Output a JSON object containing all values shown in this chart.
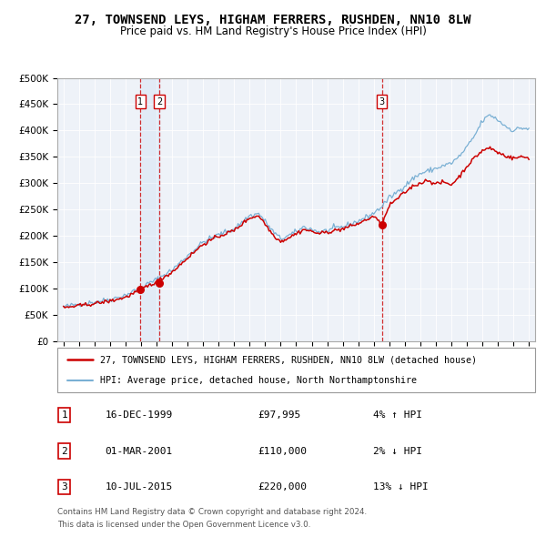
{
  "title": "27, TOWNSEND LEYS, HIGHAM FERRERS, RUSHDEN, NN10 8LW",
  "subtitle": "Price paid vs. HM Land Registry's House Price Index (HPI)",
  "title_fontsize": 10,
  "subtitle_fontsize": 8.5,
  "legend_line1": "27, TOWNSEND LEYS, HIGHAM FERRERS, RUSHDEN, NN10 8LW (detached house)",
  "legend_line2": "HPI: Average price, detached house, North Northamptonshire",
  "sale_color": "#cc0000",
  "hpi_color": "#7ab0d4",
  "plot_bg_color": "#eef2f8",
  "grid_color": "#ffffff",
  "transactions": [
    {
      "label": "1",
      "date_num": 1999.96,
      "price": 97995,
      "pct": "4%",
      "dir": "↑",
      "date_str": "16-DEC-1999"
    },
    {
      "label": "2",
      "date_num": 2001.17,
      "price": 110000,
      "pct": "2%",
      "dir": "↓",
      "date_str": "01-MAR-2001"
    },
    {
      "label": "3",
      "date_num": 2015.52,
      "price": 220000,
      "pct": "13%",
      "dir": "↓",
      "date_str": "10-JUL-2015"
    }
  ],
  "footer_line1": "Contains HM Land Registry data © Crown copyright and database right 2024.",
  "footer_line2": "This data is licensed under the Open Government Licence v3.0.",
  "ylim": [
    0,
    500000
  ],
  "yticks": [
    0,
    50000,
    100000,
    150000,
    200000,
    250000,
    300000,
    350000,
    400000,
    450000,
    500000
  ],
  "xlim_start": 1994.6,
  "xlim_end": 2025.4,
  "shade_start": 1999.96,
  "shade_end": 2001.17,
  "hpi_anchors": [
    [
      1995.0,
      65000
    ],
    [
      1996.0,
      70000
    ],
    [
      1997.0,
      74000
    ],
    [
      1998.0,
      79000
    ],
    [
      1999.0,
      87000
    ],
    [
      2000.0,
      102000
    ],
    [
      2001.0,
      117000
    ],
    [
      2002.0,
      135000
    ],
    [
      2003.0,
      162000
    ],
    [
      2004.0,
      188000
    ],
    [
      2005.0,
      202000
    ],
    [
      2006.0,
      213000
    ],
    [
      2007.0,
      238000
    ],
    [
      2007.6,
      242000
    ],
    [
      2008.5,
      208000
    ],
    [
      2009.0,
      194000
    ],
    [
      2009.5,
      200000
    ],
    [
      2010.0,
      207000
    ],
    [
      2010.5,
      217000
    ],
    [
      2011.0,
      212000
    ],
    [
      2011.5,
      207000
    ],
    [
      2012.0,
      210000
    ],
    [
      2012.5,
      214000
    ],
    [
      2013.0,
      217000
    ],
    [
      2013.5,
      222000
    ],
    [
      2014.0,
      228000
    ],
    [
      2014.5,
      235000
    ],
    [
      2015.0,
      243000
    ],
    [
      2015.5,
      255000
    ],
    [
      2016.0,
      272000
    ],
    [
      2016.5,
      283000
    ],
    [
      2017.0,
      295000
    ],
    [
      2017.5,
      308000
    ],
    [
      2018.0,
      318000
    ],
    [
      2018.5,
      323000
    ],
    [
      2019.0,
      328000
    ],
    [
      2019.5,
      333000
    ],
    [
      2020.0,
      338000
    ],
    [
      2020.5,
      350000
    ],
    [
      2021.0,
      368000
    ],
    [
      2021.5,
      390000
    ],
    [
      2022.0,
      418000
    ],
    [
      2022.5,
      430000
    ],
    [
      2023.0,
      420000
    ],
    [
      2023.5,
      408000
    ],
    [
      2024.0,
      400000
    ],
    [
      2024.5,
      405000
    ],
    [
      2025.0,
      403000
    ]
  ],
  "prop_anchors": [
    [
      1995.0,
      63000
    ],
    [
      1996.0,
      67000
    ],
    [
      1997.0,
      71000
    ],
    [
      1998.0,
      76000
    ],
    [
      1999.0,
      83000
    ],
    [
      2000.0,
      98000
    ],
    [
      2001.0,
      113000
    ],
    [
      2002.0,
      131000
    ],
    [
      2003.0,
      158000
    ],
    [
      2004.0,
      184000
    ],
    [
      2005.0,
      199000
    ],
    [
      2006.0,
      210000
    ],
    [
      2007.0,
      234000
    ],
    [
      2007.6,
      238000
    ],
    [
      2008.5,
      202000
    ],
    [
      2009.0,
      189000
    ],
    [
      2009.5,
      196000
    ],
    [
      2010.0,
      204000
    ],
    [
      2010.5,
      212000
    ],
    [
      2011.0,
      208000
    ],
    [
      2011.5,
      204000
    ],
    [
      2012.0,
      207000
    ],
    [
      2012.5,
      210000
    ],
    [
      2013.0,
      213000
    ],
    [
      2013.5,
      218000
    ],
    [
      2014.0,
      223000
    ],
    [
      2014.5,
      230000
    ],
    [
      2015.0,
      237000
    ],
    [
      2015.52,
      220000
    ],
    [
      2016.0,
      257000
    ],
    [
      2016.5,
      270000
    ],
    [
      2017.0,
      282000
    ],
    [
      2017.5,
      294000
    ],
    [
      2018.0,
      300000
    ],
    [
      2018.5,
      306000
    ],
    [
      2019.0,
      298000
    ],
    [
      2019.5,
      302000
    ],
    [
      2020.0,
      297000
    ],
    [
      2020.5,
      312000
    ],
    [
      2021.0,
      332000
    ],
    [
      2021.5,
      348000
    ],
    [
      2022.0,
      362000
    ],
    [
      2022.5,
      367000
    ],
    [
      2023.0,
      358000
    ],
    [
      2023.5,
      352000
    ],
    [
      2024.0,
      347000
    ],
    [
      2024.5,
      350000
    ],
    [
      2025.0,
      348000
    ]
  ]
}
